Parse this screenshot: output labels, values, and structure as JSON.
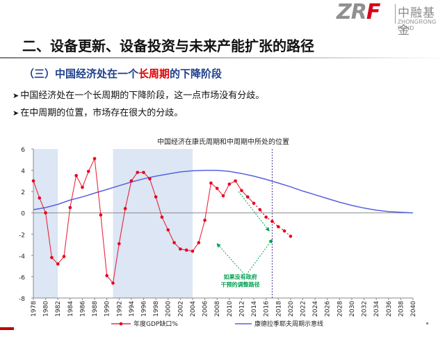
{
  "logo": {
    "mark_left": "ZR",
    "mark_right": "F",
    "name_cn": "中融基金",
    "name_en": "ZHONGRONG FUND"
  },
  "title": "二、设备更新、设备投资与未来产能扩张的路径",
  "section": {
    "prefix": "（三）中国经济处在一个",
    "highlight": "长周期",
    "suffix": "的下降阶段"
  },
  "bullets": [
    "中国经济处在一个长周期的下降阶段，这一点市场没有分歧。",
    "在中周期的位置，市场存在很大的分歧。"
  ],
  "colors": {
    "gdp_gap": "#e8001c",
    "kondratiev": "#5661e0",
    "shade": "#dce6f4",
    "annotation": "#00a050",
    "forecast_line": "#4b2ca0"
  },
  "chart_data": {
    "type": "line",
    "title": "中国经济在康氏周期和中周期中所处的位置",
    "xlabel": "",
    "ylabel": "",
    "ylim": [
      -8,
      6
    ],
    "yticks": [
      "-8",
      "-6",
      "-4",
      "-2",
      "0",
      "2",
      "4",
      "6"
    ],
    "xlim": [
      1978,
      2040
    ],
    "xticks": [
      "1978",
      "1980",
      "1982",
      "1984",
      "1986",
      "1988",
      "1990",
      "1992",
      "1994",
      "1996",
      "1998",
      "2000",
      "2002",
      "2004",
      "2006",
      "2008",
      "2010",
      "2012",
      "2014",
      "2016",
      "2018",
      "2020",
      "2022",
      "2024",
      "2026",
      "2028",
      "2030",
      "2032",
      "2034",
      "2036",
      "2038",
      "2040"
    ],
    "shaded_ranges": [
      [
        1978,
        1982
      ],
      [
        1991,
        2004
      ]
    ],
    "vertical_marker_year": 2017,
    "annotation": "如果没有政府\n干预的调整路径",
    "legend_position": "bottom",
    "series": [
      {
        "name": "年度GDP缺口%",
        "x": [
          1978,
          1979,
          1980,
          1981,
          1982,
          1983,
          1984,
          1985,
          1986,
          1987,
          1988,
          1989,
          1990,
          1991,
          1992,
          1993,
          1994,
          1995,
          1996,
          1997,
          1998,
          1999,
          2000,
          2001,
          2002,
          2003,
          2004,
          2005,
          2006,
          2007,
          2008,
          2009,
          2010,
          2011,
          2012,
          2013,
          2014,
          2015,
          2016,
          2017,
          2018,
          2019,
          2020
        ],
        "values": [
          3.0,
          1.4,
          0.0,
          -4.2,
          -4.8,
          -4.1,
          0.5,
          3.5,
          2.4,
          3.9,
          5.1,
          -0.2,
          -5.9,
          -6.6,
          -2.9,
          0.4,
          3.0,
          3.8,
          3.8,
          3.2,
          1.5,
          -0.4,
          -1.6,
          -2.8,
          -3.4,
          -3.5,
          -3.6,
          -2.8,
          -0.7,
          2.8,
          2.3,
          1.6,
          2.7,
          3.0,
          2.1,
          1.5,
          0.9,
          0.3,
          -0.4,
          -0.8,
          -1.3,
          -1.7,
          -2.2
        ],
        "projected_from_index": 36
      },
      {
        "name": "康德拉季耶夫周期示意线",
        "x": [
          1978,
          1980,
          1982,
          1984,
          1986,
          1988,
          1990,
          1992,
          1994,
          1996,
          1998,
          2000,
          2002,
          2004,
          2006,
          2008,
          2010,
          2012,
          2014,
          2016,
          2018,
          2020,
          2022,
          2024,
          2026,
          2028,
          2030,
          2032,
          2034,
          2036,
          2038,
          2040
        ],
        "values": [
          0.3,
          0.5,
          0.8,
          1.2,
          1.5,
          1.85,
          2.2,
          2.55,
          2.9,
          3.2,
          3.45,
          3.65,
          3.85,
          3.95,
          4.0,
          4.0,
          3.9,
          3.7,
          3.45,
          3.15,
          2.8,
          2.45,
          2.05,
          1.7,
          1.35,
          1.0,
          0.7,
          0.45,
          0.25,
          0.12,
          0.05,
          0.0
        ]
      }
    ]
  }
}
